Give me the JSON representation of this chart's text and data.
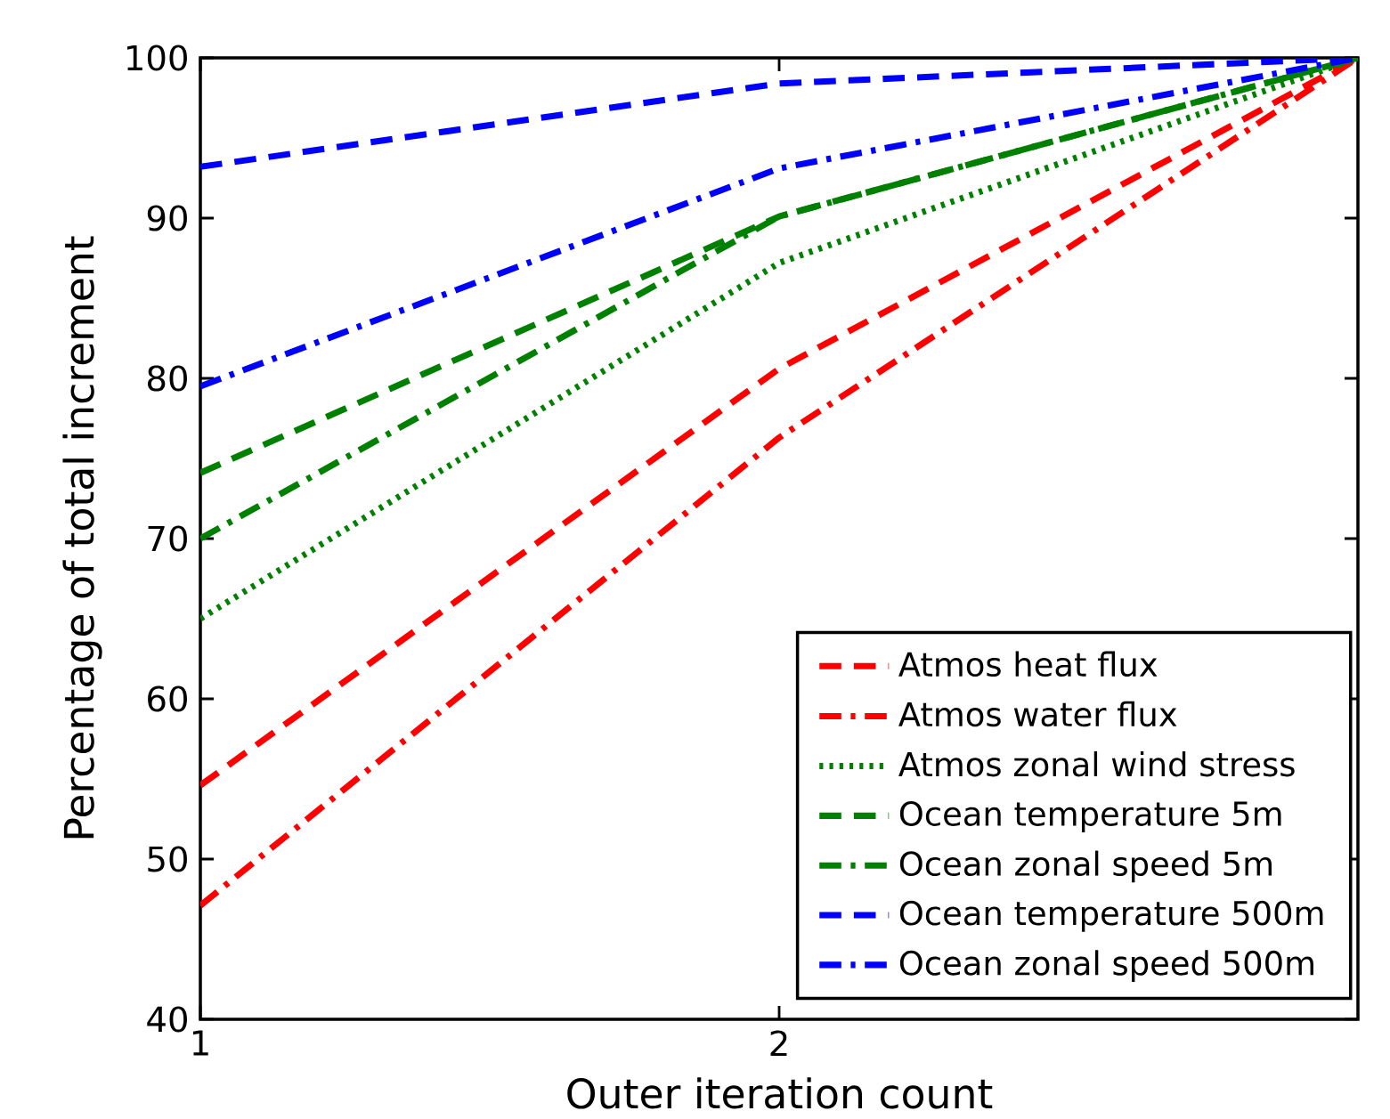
{
  "chart_data": {
    "type": "line",
    "xlabel": "Outer iteration count",
    "ylabel": "Percentage of total increment",
    "x": [
      1,
      2,
      3
    ],
    "series": [
      {
        "name": "Atmos heat flux",
        "color": "#ff0000",
        "line_style": "dashed",
        "values": [
          54.6,
          80.6,
          100
        ]
      },
      {
        "name": "Atmos water flux",
        "color": "#ff0000",
        "line_style": "dashdot",
        "values": [
          47.1,
          76.3,
          100
        ]
      },
      {
        "name": "Atmos zonal wind stress",
        "color": "#008000",
        "line_style": "dotted",
        "values": [
          65.0,
          87.2,
          100
        ]
      },
      {
        "name": "Ocean temperature 5m",
        "color": "#008000",
        "line_style": "dashed",
        "values": [
          74.1,
          90.1,
          100
        ]
      },
      {
        "name": "Ocean zonal speed 5m",
        "color": "#008000",
        "line_style": "dashdot",
        "values": [
          70.0,
          90.1,
          100
        ]
      },
      {
        "name": "Ocean temperature 500m",
        "color": "#0000ff",
        "line_style": "dashed",
        "values": [
          93.2,
          98.4,
          100
        ]
      },
      {
        "name": "Ocean zonal speed 500m",
        "color": "#0000ff",
        "line_style": "dashdot",
        "values": [
          79.5,
          93.1,
          100
        ]
      }
    ],
    "xlim": [
      1,
      3
    ],
    "xticks": [
      1,
      2
    ],
    "ylim": [
      40,
      100
    ],
    "yticks": [
      40,
      50,
      60,
      70,
      80,
      90,
      100
    ],
    "grid": false,
    "legend": "bottom right",
    "marker": "none"
  }
}
